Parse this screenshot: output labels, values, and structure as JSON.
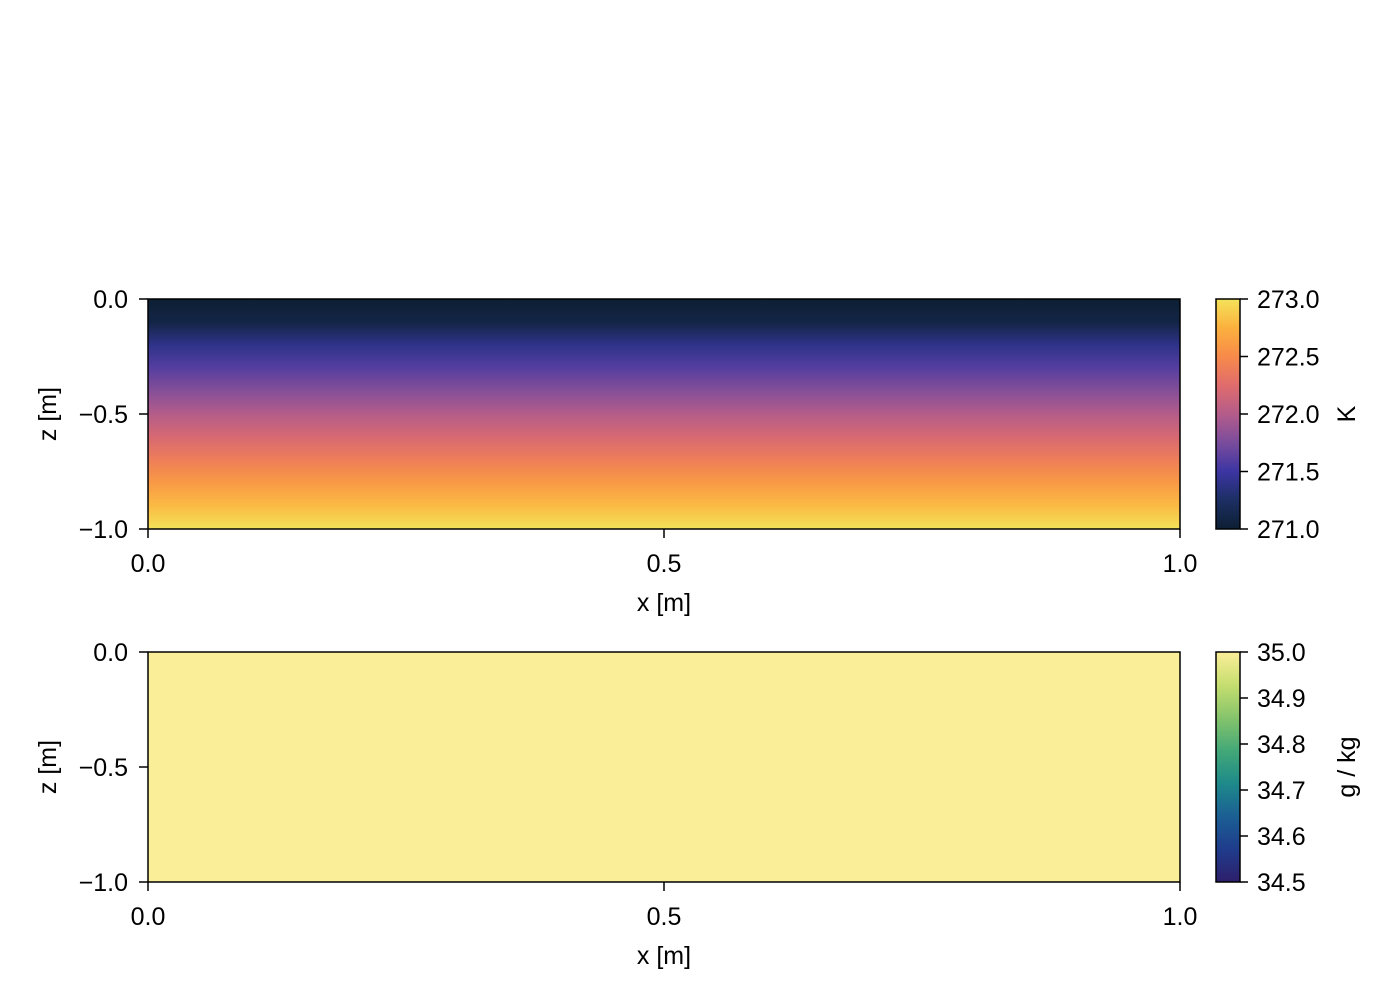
{
  "chart_data": [
    {
      "type": "heatmap",
      "title": "",
      "xlabel": "x [m]",
      "ylabel": "z [m]",
      "xlim": [
        0.0,
        1.0
      ],
      "ylim": [
        -1.0,
        0.0
      ],
      "x_ticks": [
        {
          "value": 0.0,
          "label": "0.0"
        },
        {
          "value": 0.5,
          "label": "0.5"
        },
        {
          "value": 1.0,
          "label": "1.0"
        }
      ],
      "y_ticks": [
        {
          "value": 0.0,
          "label": "0.0"
        },
        {
          "value": -0.5,
          "label": "−0.5"
        },
        {
          "value": -1.0,
          "label": "−1.0"
        }
      ],
      "field_profile": {
        "z": [
          0.0,
          -0.1,
          -0.2,
          -0.3,
          -0.4,
          -0.5,
          -0.6,
          -0.7,
          -0.8,
          -0.9,
          -1.0
        ],
        "value": [
          271.0,
          271.1,
          271.4,
          271.6,
          271.8,
          272.0,
          272.2,
          272.4,
          272.6,
          272.8,
          273.0
        ]
      },
      "colorbar": {
        "label": "K",
        "range": [
          271.0,
          273.0
        ],
        "ticks": [
          {
            "value": 273.0,
            "label": "273.0"
          },
          {
            "value": 272.5,
            "label": "272.5"
          },
          {
            "value": 272.0,
            "label": "272.0"
          },
          {
            "value": 271.5,
            "label": "271.5"
          },
          {
            "value": 271.0,
            "label": "271.0"
          }
        ],
        "colormap": [
          "#0d1f33",
          "#1c2f63",
          "#3c35a3",
          "#7a4c9c",
          "#b45c8a",
          "#e06c6c",
          "#f88a4a",
          "#fbb13e",
          "#f4e25a"
        ]
      }
    },
    {
      "type": "heatmap",
      "title": "",
      "xlabel": "x [m]",
      "ylabel": "z [m]",
      "xlim": [
        0.0,
        1.0
      ],
      "ylim": [
        -1.0,
        0.0
      ],
      "x_ticks": [
        {
          "value": 0.0,
          "label": "0.0"
        },
        {
          "value": 0.5,
          "label": "0.5"
        },
        {
          "value": 1.0,
          "label": "1.0"
        }
      ],
      "y_ticks": [
        {
          "value": 0.0,
          "label": "0.0"
        },
        {
          "value": -0.5,
          "label": "−0.5"
        },
        {
          "value": -1.0,
          "label": "−1.0"
        }
      ],
      "field_profile": {
        "z": [
          0.0,
          -1.0
        ],
        "value": [
          35.0,
          35.0
        ]
      },
      "colorbar": {
        "label": "g / kg",
        "range": [
          34.5,
          35.0
        ],
        "ticks": [
          {
            "value": 35.0,
            "label": "35.0"
          },
          {
            "value": 34.9,
            "label": "34.9"
          },
          {
            "value": 34.8,
            "label": "34.8"
          },
          {
            "value": 34.7,
            "label": "34.7"
          },
          {
            "value": 34.6,
            "label": "34.6"
          },
          {
            "value": 34.5,
            "label": "34.5"
          }
        ],
        "colormap": [
          "#2e1f6b",
          "#1f3c8c",
          "#1b5f94",
          "#1e8a8a",
          "#43a877",
          "#86c46b",
          "#c6de70",
          "#fbee98"
        ]
      }
    }
  ]
}
